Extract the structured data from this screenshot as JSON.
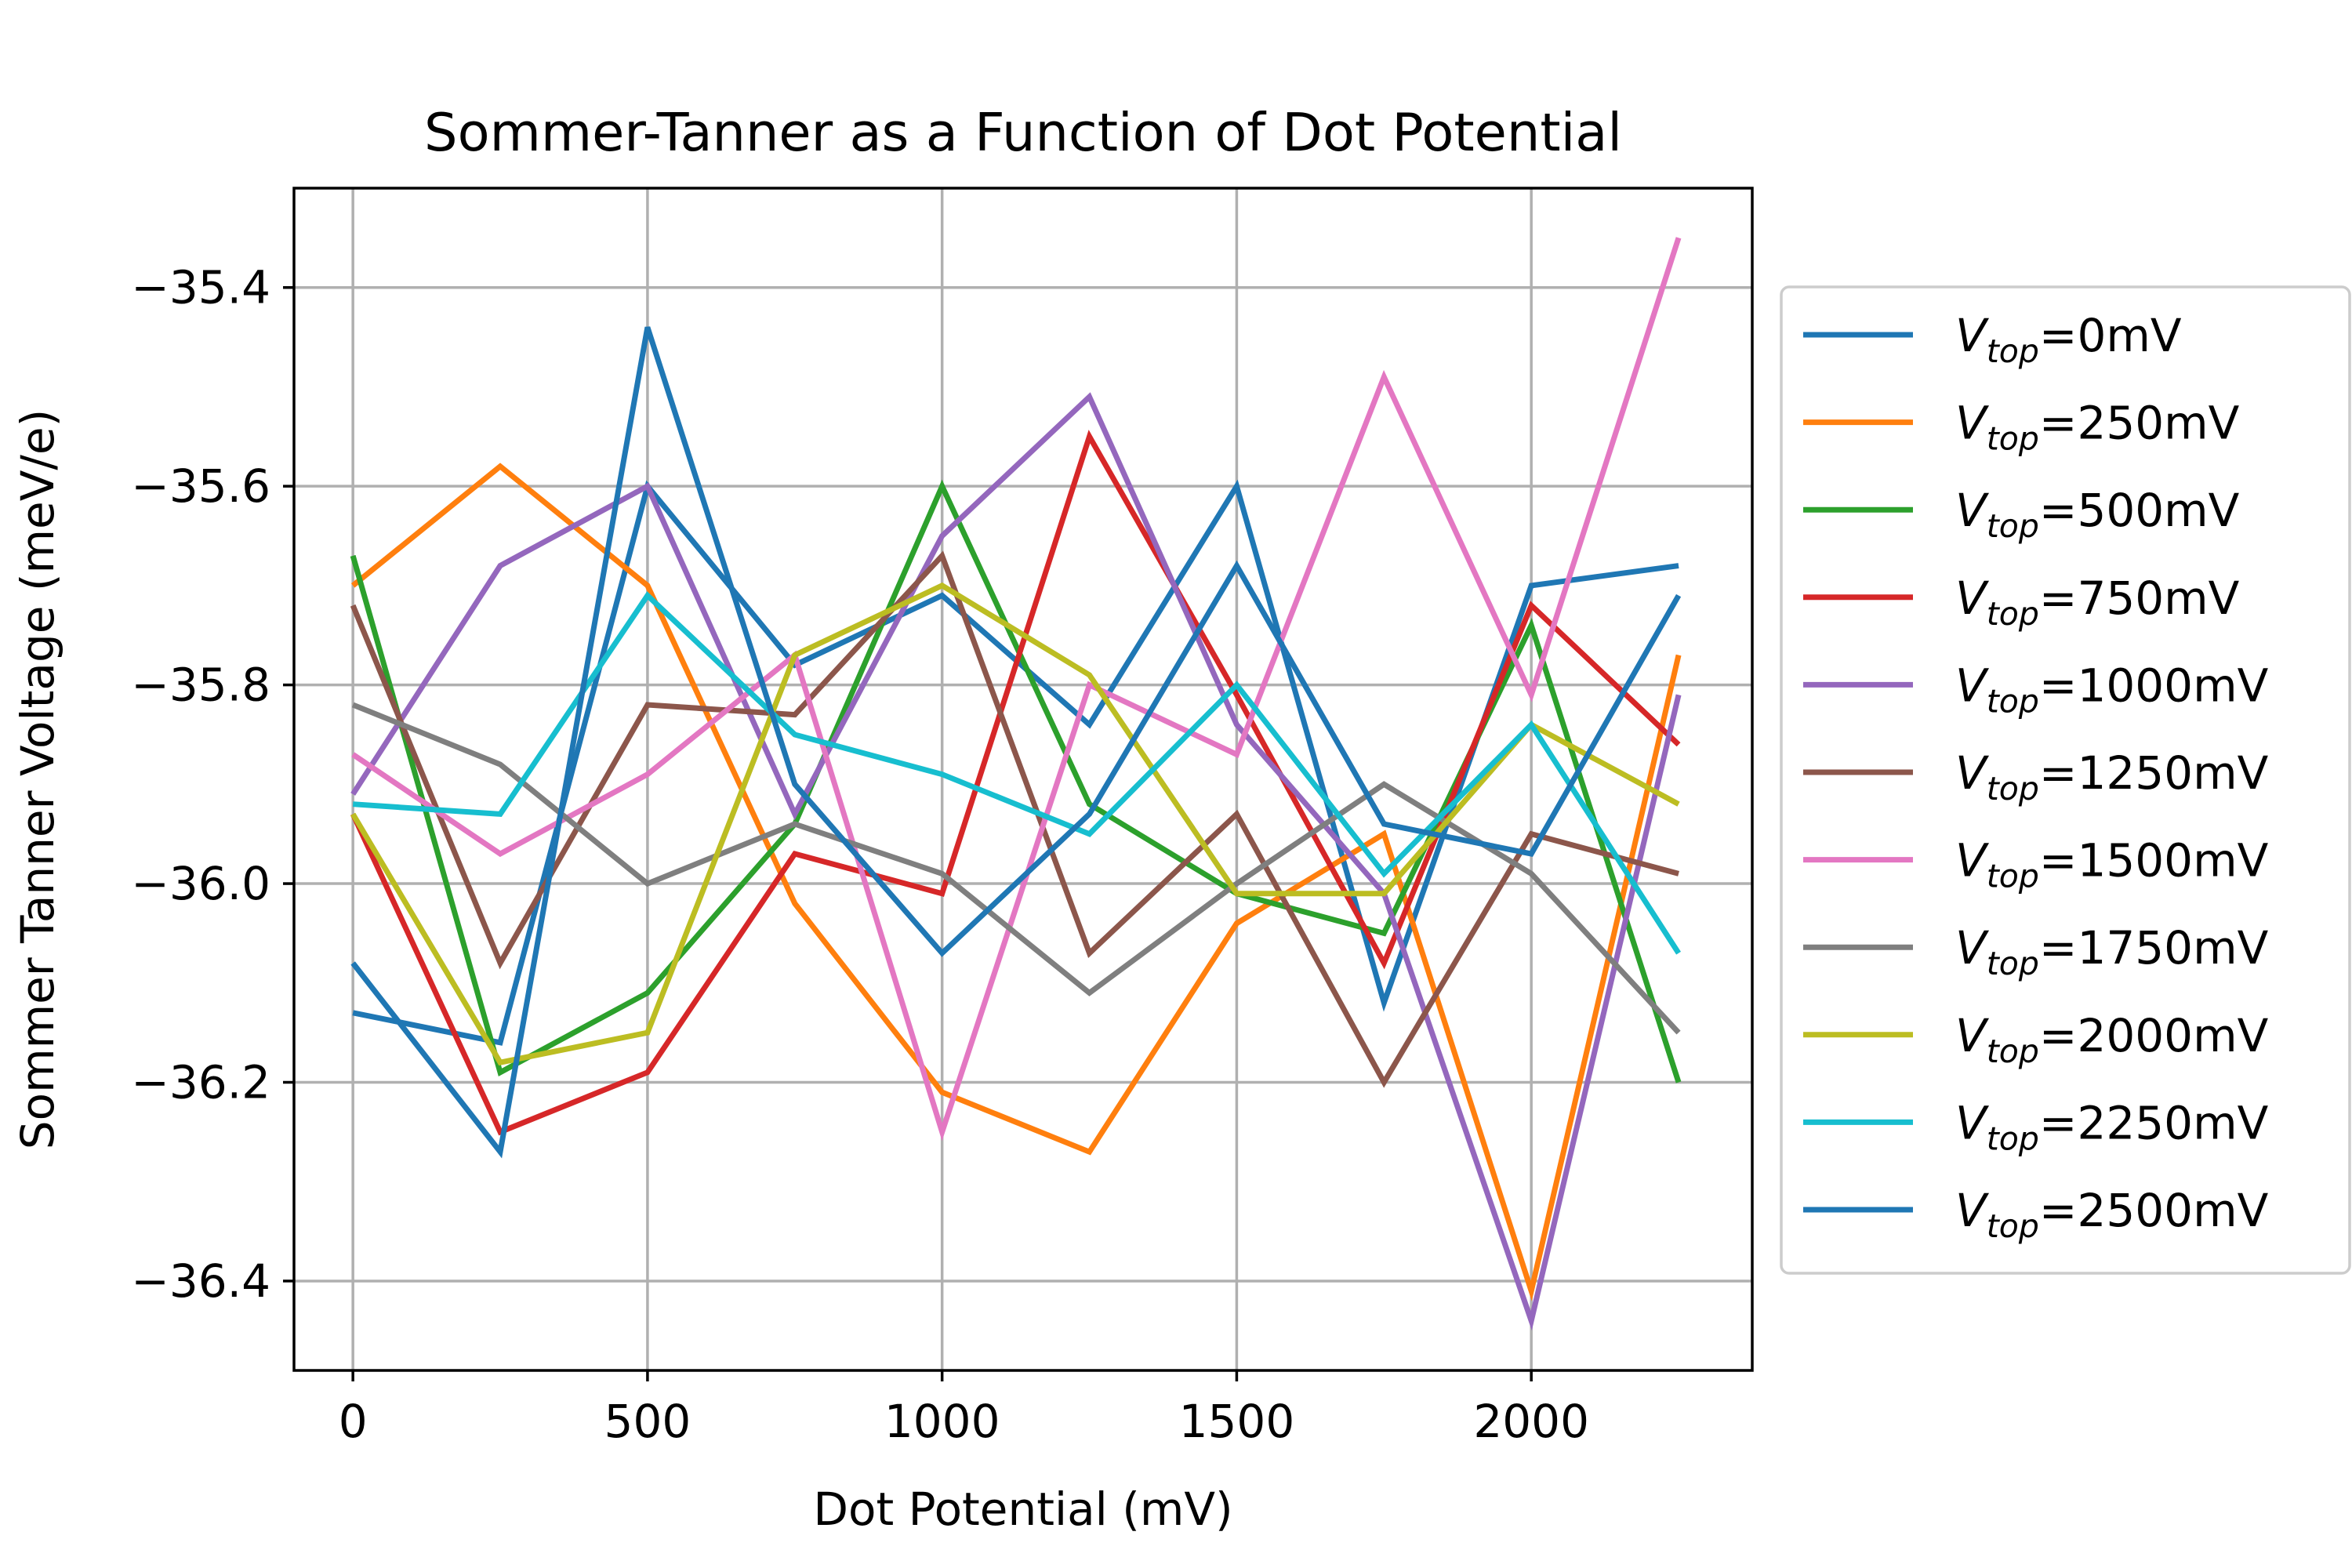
{
  "chart_data": {
    "type": "line",
    "title": "Sommer-Tanner as a Function of Dot Potential",
    "xlabel": "Dot Potential (mV)",
    "ylabel": "Sommer Tanner Voltage (meV/e)",
    "xlim": [
      -100,
      2375
    ],
    "ylim": [
      -36.49,
      -35.3
    ],
    "xticks": [
      0,
      500,
      1000,
      1500,
      2000
    ],
    "xtick_labels": [
      "0",
      "500",
      "1000",
      "1500",
      "2000"
    ],
    "yticks": [
      -36.4,
      -36.2,
      -36.0,
      -35.8,
      -35.6,
      -35.4
    ],
    "ytick_labels": [
      "−36.4",
      "−36.2",
      "−36.0",
      "−35.8",
      "−35.6",
      "−35.4"
    ],
    "grid": true,
    "legend_position": "outside-right",
    "x": [
      0,
      250,
      500,
      750,
      1000,
      1250,
      1500,
      1750,
      2000,
      2250
    ],
    "series": [
      {
        "name": "Vtop=0mV",
        "label_main": "V",
        "label_sub": "top",
        "label_rest": "=0mV",
        "color": "#1f77b4",
        "values": [
          -36.13,
          -36.16,
          -35.6,
          -35.78,
          -35.71,
          -35.84,
          -35.6,
          -36.12,
          -35.7,
          -35.68
        ]
      },
      {
        "name": "Vtop=250mV",
        "label_main": "V",
        "label_sub": "top",
        "label_rest": "=250mV",
        "color": "#ff7f0e",
        "values": [
          -35.7,
          -35.58,
          -35.7,
          -36.02,
          -36.21,
          -36.27,
          -36.04,
          -35.95,
          -36.41,
          -35.77
        ]
      },
      {
        "name": "Vtop=500mV",
        "label_main": "V",
        "label_sub": "top",
        "label_rest": "=500mV",
        "color": "#2ca02c",
        "values": [
          -35.67,
          -36.19,
          -36.11,
          -35.94,
          -35.6,
          -35.92,
          -36.01,
          -36.05,
          -35.74,
          -36.2
        ]
      },
      {
        "name": "Vtop=750mV",
        "label_main": "V",
        "label_sub": "top",
        "label_rest": "=750mV",
        "color": "#d62728",
        "values": [
          -35.93,
          -36.25,
          -36.19,
          -35.97,
          -36.01,
          -35.55,
          -35.81,
          -36.08,
          -35.72,
          -35.86
        ]
      },
      {
        "name": "Vtop=1000mV",
        "label_main": "V",
        "label_sub": "top",
        "label_rest": "=1000mV",
        "color": "#9467bd",
        "values": [
          -35.91,
          -35.68,
          -35.6,
          -35.93,
          -35.65,
          -35.51,
          -35.84,
          -36.01,
          -36.44,
          -35.81
        ]
      },
      {
        "name": "Vtop=1250mV",
        "label_main": "V",
        "label_sub": "top",
        "label_rest": "=1250mV",
        "color": "#8c564b",
        "values": [
          -35.72,
          -36.08,
          -35.82,
          -35.83,
          -35.67,
          -36.07,
          -35.93,
          -36.2,
          -35.95,
          -35.99
        ]
      },
      {
        "name": "Vtop=1500mV",
        "label_main": "V",
        "label_sub": "top",
        "label_rest": "=1500mV",
        "color": "#e377c2",
        "values": [
          -35.87,
          -35.97,
          -35.89,
          -35.77,
          -36.25,
          -35.8,
          -35.87,
          -35.49,
          -35.81,
          -35.35
        ]
      },
      {
        "name": "Vtop=1750mV",
        "label_main": "V",
        "label_sub": "top",
        "label_rest": "=1750mV",
        "color": "#7f7f7f",
        "values": [
          -35.82,
          -35.88,
          -36.0,
          -35.94,
          -35.99,
          -36.11,
          -36.0,
          -35.9,
          -35.99,
          -36.15
        ]
      },
      {
        "name": "Vtop=2000mV",
        "label_main": "V",
        "label_sub": "top",
        "label_rest": "=2000mV",
        "color": "#bcbd22",
        "values": [
          -35.93,
          -36.18,
          -36.15,
          -35.77,
          -35.7,
          -35.79,
          -36.01,
          -36.01,
          -35.84,
          -35.92
        ]
      },
      {
        "name": "Vtop=2250mV",
        "label_main": "V",
        "label_sub": "top",
        "label_rest": "=2250mV",
        "color": "#17becf",
        "values": [
          -35.92,
          -35.93,
          -35.71,
          -35.85,
          -35.89,
          -35.95,
          -35.8,
          -35.99,
          -35.84,
          -36.07
        ]
      },
      {
        "name": "Vtop=2500mV",
        "label_main": "V",
        "label_sub": "top",
        "label_rest": "=2500mV",
        "color": "#1f77b4",
        "values": [
          -36.08,
          -36.27,
          -35.44,
          -35.9,
          -36.07,
          -35.93,
          -35.68,
          -35.94,
          -35.97,
          -35.71
        ]
      }
    ]
  }
}
